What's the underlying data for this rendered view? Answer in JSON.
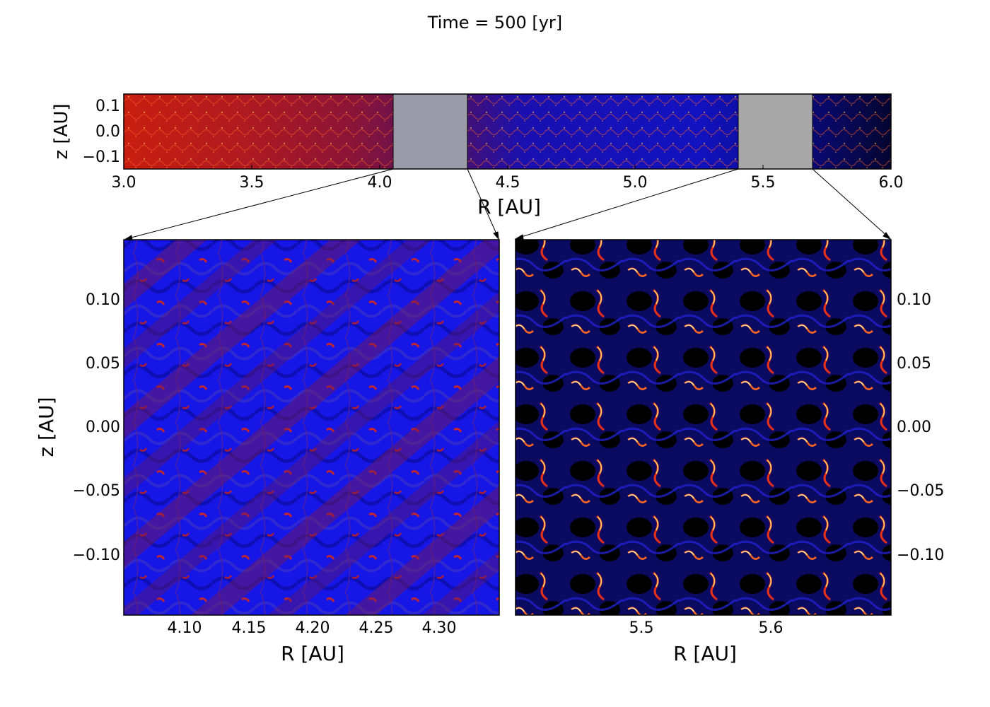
{
  "figure": {
    "title": "Time =  500 [yr]"
  },
  "top_panel": {
    "xlabel": "R [AU]",
    "ylabel": "z [AU]",
    "xlim": [
      3.0,
      6.0
    ],
    "ylim": [
      -0.145,
      0.145
    ],
    "xticks": [
      "3.0",
      "3.5",
      "4.0",
      "4.5",
      "5.0",
      "5.5",
      "6.0"
    ],
    "yticks": [
      "0.1",
      "0.0",
      "−0.1"
    ],
    "zoom_boxes": [
      {
        "r_min": 4.05,
        "r_max": 4.34,
        "fill": "#9a9aa8"
      },
      {
        "r_min": 5.4,
        "r_max": 5.69,
        "fill": "#a8a8a8"
      }
    ]
  },
  "left_panel": {
    "xlabel": "R [AU]",
    "ylabel": "z [AU]",
    "xlim": [
      4.05,
      4.34
    ],
    "ylim": [
      -0.145,
      0.145
    ],
    "xticks": [
      "4.10",
      "4.15",
      "4.20",
      "4.25",
      "4.30"
    ],
    "yticks": [
      "0.10",
      "0.05",
      "0.00",
      "−0.05",
      "−0.10"
    ]
  },
  "right_panel": {
    "xlabel": "R [AU]",
    "xlim": [
      5.4,
      5.69
    ],
    "ylim": [
      -0.145,
      0.145
    ],
    "xticks": [
      "5.5",
      "5.6"
    ],
    "yticks": [
      "0.10",
      "0.05",
      "0.00",
      "−0.05",
      "−0.10"
    ]
  },
  "colors": {
    "inner_turbulence": "#d02010",
    "outer_background": "#0a0a70",
    "field_blue": "#1010e0",
    "hot_filament": "#ffe060",
    "dark_void": "#000000"
  }
}
